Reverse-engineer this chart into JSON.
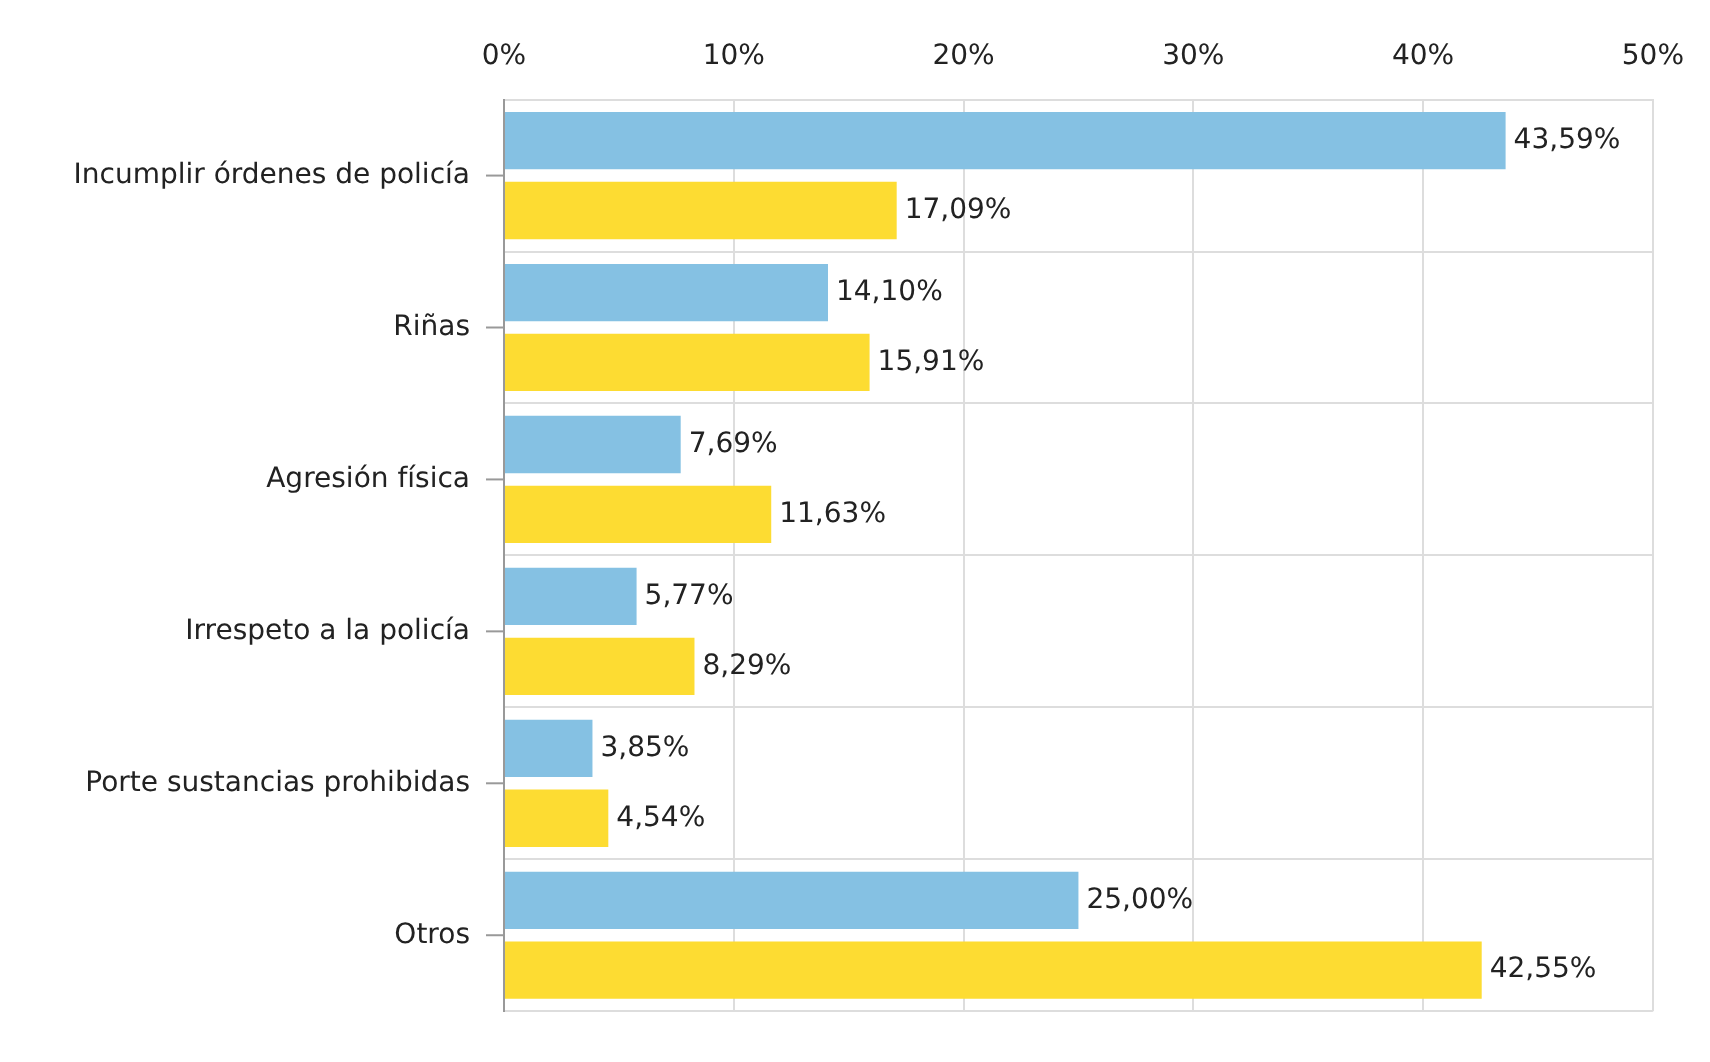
{
  "chart_data": {
    "type": "bar",
    "orientation": "horizontal",
    "categories": [
      "Incumplir órdenes de policía",
      "Riñas",
      "Agresión física",
      "Irrespeto a la policía",
      "Porte sustancias prohibidas",
      "Otros"
    ],
    "series": [
      {
        "color": "#85c1e3",
        "values": [
          43.59,
          14.1,
          7.69,
          5.77,
          3.85,
          25.0
        ],
        "value_labels": [
          "43,59%",
          "14,10%",
          "7,69%",
          "5,77%",
          "3,85%",
          "25,00%"
        ]
      },
      {
        "color": "#fddc32",
        "values": [
          17.09,
          15.91,
          11.63,
          8.29,
          4.54,
          42.55
        ],
        "value_labels": [
          "17,09%",
          "15,91%",
          "11,63%",
          "8,29%",
          "4,54%",
          "42,55%"
        ]
      }
    ],
    "xlim": [
      0,
      50
    ],
    "xticks": [
      {
        "value": 0,
        "label": "0%"
      },
      {
        "value": 10,
        "label": "10%"
      },
      {
        "value": 20,
        "label": "20%"
      },
      {
        "value": 30,
        "label": "30%"
      },
      {
        "value": 40,
        "label": "40%"
      },
      {
        "value": 50,
        "label": "50%"
      }
    ],
    "grid": true
  }
}
